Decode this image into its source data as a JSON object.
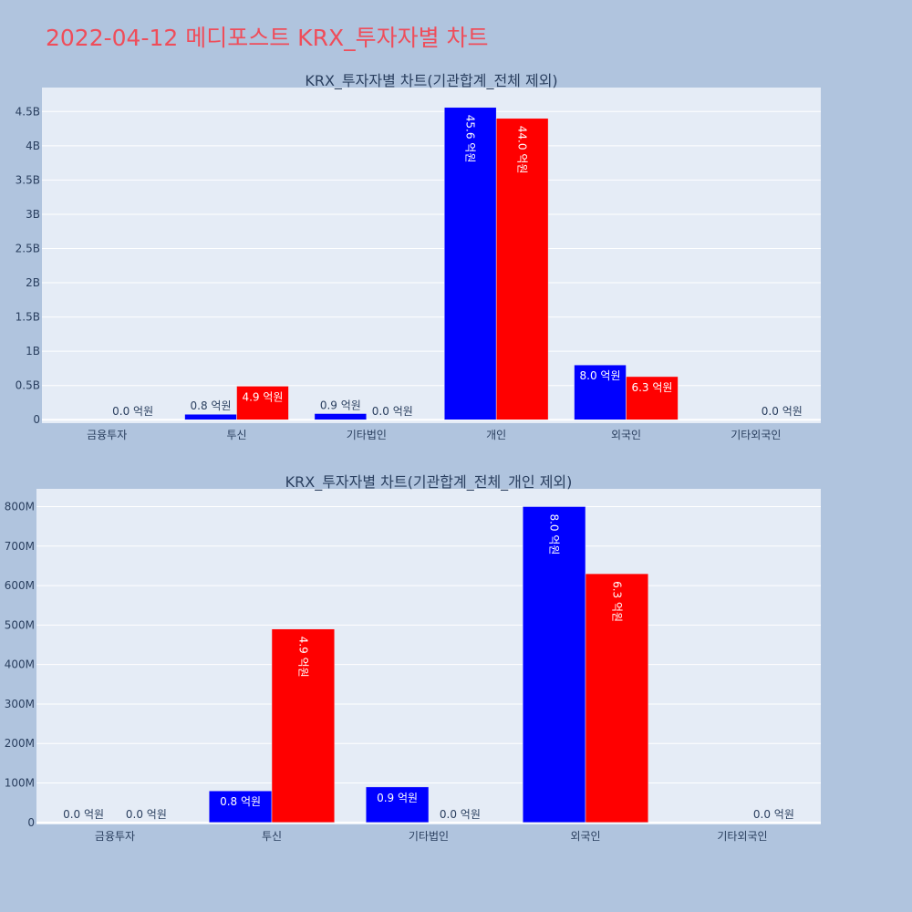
{
  "title": "2022-04-12 메디포스트 KRX_투자자별 차트",
  "colors": {
    "background": "#b0c4de",
    "plot_bg": "#e5ecf6",
    "series_a": "#0000ff",
    "series_b": "#ff0000",
    "title": "#ef4d5a"
  },
  "chart_data": [
    {
      "type": "bar",
      "title": "KRX_투자자별 차트(기관합계_전체 제외)",
      "categories": [
        "금융투자",
        "투신",
        "기타법인",
        "개인",
        "외국인",
        "기타외국인"
      ],
      "series": [
        {
          "values": [
            0,
            80000000,
            90000000,
            4560000000,
            800000000,
            0
          ],
          "labels": [
            "",
            "0.8 억원",
            "0.9 억원",
            "45.6 억원",
            "8.0 억원",
            ""
          ]
        },
        {
          "values": [
            0,
            490000000,
            0,
            4400000000,
            630000000,
            0
          ],
          "labels": [
            "0.0 억원",
            "4.9 억원",
            "0.0 억원",
            "44.0 억원",
            "6.3 억원",
            "0.0 억원"
          ]
        }
      ],
      "ylim": [
        -50000000,
        4850000000
      ],
      "yticks": [
        0,
        500000000,
        1000000000,
        1500000000,
        2000000000,
        2500000000,
        3000000000,
        3500000000,
        4000000000,
        4500000000
      ],
      "ytick_labels": [
        "0",
        "0.5B",
        "1B",
        "1.5B",
        "2B",
        "2.5B",
        "3B",
        "3.5B",
        "4B",
        "4.5B"
      ],
      "grid": true
    },
    {
      "type": "bar",
      "title": "KRX_투자자별 차트(기관합계_전체_개인 제외)",
      "categories": [
        "금융투자",
        "투신",
        "기타법인",
        "외국인",
        "기타외국인"
      ],
      "series": [
        {
          "values": [
            0,
            80000000,
            90000000,
            800000000,
            0
          ],
          "labels": [
            "0.0 억원",
            "0.8 억원",
            "0.9 억원",
            "8.0 억원",
            ""
          ]
        },
        {
          "values": [
            0,
            490000000,
            0,
            630000000,
            0
          ],
          "labels": [
            "0.0 억원",
            "4.9 억원",
            "0.0 억원",
            "6.3 억원",
            "0.0 억원"
          ]
        }
      ],
      "ylim": [
        -5000000,
        845000000
      ],
      "yticks": [
        0,
        100000000,
        200000000,
        300000000,
        400000000,
        500000000,
        600000000,
        700000000,
        800000000
      ],
      "ytick_labels": [
        "0",
        "100M",
        "200M",
        "300M",
        "400M",
        "500M",
        "600M",
        "700M",
        "800M"
      ],
      "grid": true
    }
  ]
}
